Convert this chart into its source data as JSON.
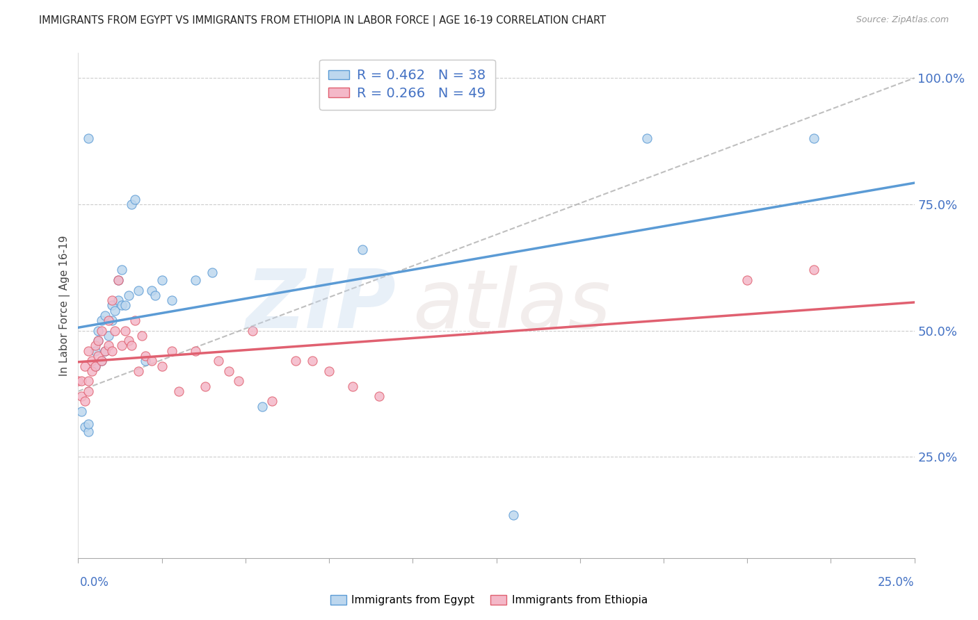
{
  "title": "IMMIGRANTS FROM EGYPT VS IMMIGRANTS FROM ETHIOPIA IN LABOR FORCE | AGE 16-19 CORRELATION CHART",
  "source": "Source: ZipAtlas.com",
  "ylabel": "In Labor Force | Age 16-19",
  "legend_egypt": "Immigrants from Egypt",
  "legend_ethiopia": "Immigrants from Ethiopia",
  "R_egypt": 0.462,
  "N_egypt": 38,
  "R_ethiopia": 0.266,
  "N_ethiopia": 49,
  "color_egypt_fill": "#bdd7ee",
  "color_egypt_edge": "#5b9bd5",
  "color_egypt_line": "#5b9bd5",
  "color_ethiopia_fill": "#f4b8c8",
  "color_ethiopia_edge": "#e06070",
  "color_ethiopia_line": "#e06070",
  "color_diag": "#aaaaaa",
  "xlim": [
    0.0,
    0.25
  ],
  "ylim": [
    0.05,
    1.05
  ],
  "egypt_x": [
    0.001,
    0.002,
    0.003,
    0.003,
    0.005,
    0.006,
    0.006,
    0.007,
    0.007,
    0.008,
    0.008,
    0.009,
    0.01,
    0.01,
    0.011,
    0.012,
    0.012,
    0.013,
    0.013,
    0.014,
    0.015,
    0.016,
    0.017,
    0.018,
    0.02,
    0.022,
    0.023,
    0.025,
    0.028,
    0.035,
    0.04,
    0.055,
    0.085,
    0.13,
    0.17,
    0.22,
    0.003,
    0.005
  ],
  "egypt_y": [
    0.34,
    0.31,
    0.3,
    0.315,
    0.46,
    0.48,
    0.5,
    0.44,
    0.52,
    0.53,
    0.46,
    0.49,
    0.55,
    0.52,
    0.54,
    0.56,
    0.6,
    0.55,
    0.62,
    0.55,
    0.57,
    0.75,
    0.76,
    0.58,
    0.44,
    0.58,
    0.57,
    0.6,
    0.56,
    0.6,
    0.615,
    0.35,
    0.66,
    0.135,
    0.88,
    0.88,
    0.88,
    0.43
  ],
  "ethiopia_x": [
    0.0,
    0.001,
    0.001,
    0.002,
    0.002,
    0.003,
    0.003,
    0.003,
    0.004,
    0.004,
    0.005,
    0.005,
    0.006,
    0.006,
    0.007,
    0.007,
    0.008,
    0.009,
    0.009,
    0.01,
    0.01,
    0.011,
    0.012,
    0.013,
    0.014,
    0.015,
    0.016,
    0.017,
    0.018,
    0.019,
    0.02,
    0.022,
    0.025,
    0.028,
    0.03,
    0.035,
    0.038,
    0.042,
    0.045,
    0.048,
    0.052,
    0.058,
    0.065,
    0.07,
    0.075,
    0.082,
    0.09,
    0.2,
    0.22
  ],
  "ethiopia_y": [
    0.4,
    0.37,
    0.4,
    0.36,
    0.43,
    0.38,
    0.4,
    0.46,
    0.44,
    0.42,
    0.43,
    0.47,
    0.45,
    0.48,
    0.44,
    0.5,
    0.46,
    0.47,
    0.52,
    0.46,
    0.56,
    0.5,
    0.6,
    0.47,
    0.5,
    0.48,
    0.47,
    0.52,
    0.42,
    0.49,
    0.45,
    0.44,
    0.43,
    0.46,
    0.38,
    0.46,
    0.39,
    0.44,
    0.42,
    0.4,
    0.5,
    0.36,
    0.44,
    0.44,
    0.42,
    0.39,
    0.37,
    0.6,
    0.62
  ],
  "ytick_values": [
    0.25,
    0.5,
    0.75,
    1.0
  ],
  "ytick_labels": [
    "25.0%",
    "50.0%",
    "75.0%",
    "100.0%"
  ],
  "xtick_values": [
    0.0,
    0.025,
    0.05,
    0.075,
    0.1,
    0.125,
    0.15,
    0.175,
    0.2,
    0.225,
    0.25
  ],
  "background_color": "#ffffff",
  "grid_color": "#cccccc",
  "title_color": "#222222",
  "axis_color": "#4472c4",
  "stat_color": "#4472c4"
}
